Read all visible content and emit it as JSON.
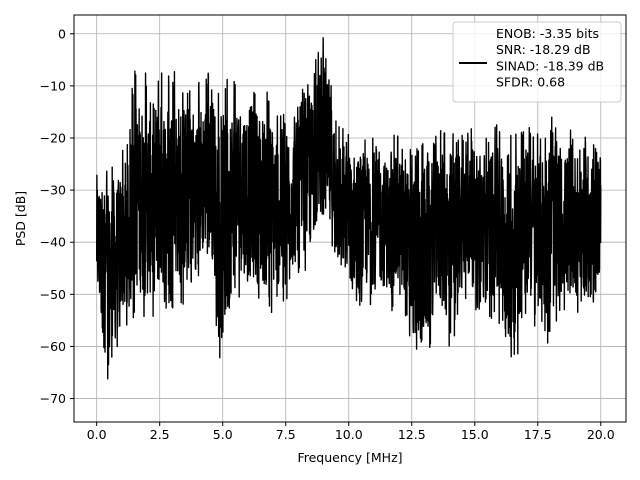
{
  "chart_data": {
    "type": "line",
    "title": "",
    "xlabel": "Frequency [MHz]",
    "ylabel": "PSD [dB]",
    "xlim": [
      -0.9,
      21.0
    ],
    "ylim": [
      -74.5,
      3.6
    ],
    "xticks": [
      0.0,
      2.5,
      5.0,
      7.5,
      10.0,
      12.5,
      15.0,
      17.5,
      20.0
    ],
    "xtick_labels": [
      "0.0",
      "2.5",
      "5.0",
      "7.5",
      "10.0",
      "12.5",
      "15.0",
      "17.5",
      "20.0"
    ],
    "yticks": [
      0,
      -10,
      -20,
      -30,
      -40,
      -50,
      -60,
      -70
    ],
    "ytick_labels": [
      "0",
      "−10",
      "−20",
      "−30",
      "−40",
      "−50",
      "−60",
      "−70"
    ],
    "grid": true,
    "legend_position": "top-right",
    "line_color": "#000000",
    "series": [
      {
        "legend_lines": [
          "ENOB: -3.35 bits",
          "SNR: -18.29 dB",
          "SINAD: -18.39 dB",
          "SFDR: 0.68"
        ],
        "description_points": "noisy PSD envelope (upper/lower bounds, dB) vs frequency (MHz)",
        "envelope": [
          {
            "x": 0.0,
            "hi": -23,
            "lo": -55
          },
          {
            "x": 0.5,
            "hi": -26,
            "lo": -70
          },
          {
            "x": 1.0,
            "hi": -22,
            "lo": -58
          },
          {
            "x": 1.5,
            "hi": -7,
            "lo": -55
          },
          {
            "x": 2.0,
            "hi": -7,
            "lo": -57
          },
          {
            "x": 2.5,
            "hi": -7,
            "lo": -55
          },
          {
            "x": 3.0,
            "hi": -7,
            "lo": -53
          },
          {
            "x": 3.5,
            "hi": -8,
            "lo": -52
          },
          {
            "x": 4.0,
            "hi": -9,
            "lo": -50
          },
          {
            "x": 4.5,
            "hi": -7,
            "lo": -44
          },
          {
            "x": 5.0,
            "hi": -8,
            "lo": -69
          },
          {
            "x": 5.5,
            "hi": -8,
            "lo": -50
          },
          {
            "x": 6.0,
            "hi": -8,
            "lo": -52
          },
          {
            "x": 6.5,
            "hi": -9,
            "lo": -54
          },
          {
            "x": 7.0,
            "hi": -12,
            "lo": -54
          },
          {
            "x": 7.5,
            "hi": -14,
            "lo": -52
          },
          {
            "x": 8.0,
            "hi": -12,
            "lo": -48
          },
          {
            "x": 8.5,
            "hi": -8,
            "lo": -44
          },
          {
            "x": 9.0,
            "hi": 0,
            "lo": -39
          },
          {
            "x": 9.5,
            "hi": -14,
            "lo": -48
          },
          {
            "x": 10.0,
            "hi": -19,
            "lo": -51
          },
          {
            "x": 10.5,
            "hi": -18,
            "lo": -54
          },
          {
            "x": 11.0,
            "hi": -20,
            "lo": -52
          },
          {
            "x": 11.5,
            "hi": -20,
            "lo": -53
          },
          {
            "x": 12.0,
            "hi": -19,
            "lo": -55
          },
          {
            "x": 12.5,
            "hi": -22,
            "lo": -63
          },
          {
            "x": 13.0,
            "hi": -19,
            "lo": -67
          },
          {
            "x": 13.5,
            "hi": -19,
            "lo": -55
          },
          {
            "x": 14.0,
            "hi": -17,
            "lo": -62
          },
          {
            "x": 14.5,
            "hi": -17,
            "lo": -53
          },
          {
            "x": 15.0,
            "hi": -18,
            "lo": -53
          },
          {
            "x": 15.5,
            "hi": -17,
            "lo": -55
          },
          {
            "x": 16.0,
            "hi": -17,
            "lo": -57
          },
          {
            "x": 16.5,
            "hi": -17,
            "lo": -66
          },
          {
            "x": 17.0,
            "hi": -17,
            "lo": -55
          },
          {
            "x": 17.5,
            "hi": -19,
            "lo": -57
          },
          {
            "x": 18.0,
            "hi": -15,
            "lo": -60
          },
          {
            "x": 18.5,
            "hi": -19,
            "lo": -53
          },
          {
            "x": 19.0,
            "hi": -18,
            "lo": -55
          },
          {
            "x": 19.5,
            "hi": -17,
            "lo": -54
          },
          {
            "x": 20.0,
            "hi": -18,
            "lo": -50
          }
        ]
      }
    ]
  }
}
